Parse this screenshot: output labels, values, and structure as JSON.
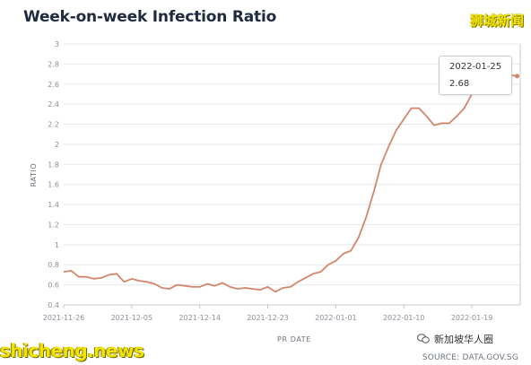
{
  "title": "Week-on-week Infection Ratio",
  "watermark_top": "狮城新闻",
  "watermark_bottom_left": "shicheng.news",
  "watermark_bottom_right": "新加坡华人圈",
  "source": "SOURCE: DATA.GOV.SG",
  "tooltip": {
    "date": "2022-01-25",
    "value": "2.68"
  },
  "colors": {
    "line": "#d4866b",
    "grid": "#e6e8eb",
    "title": "#1f2a3f"
  },
  "chart_data": {
    "type": "line",
    "title": "Week-on-week Infection Ratio",
    "xlabel": "PR DATE",
    "ylabel": "RATIO",
    "ylim": [
      0.4,
      3
    ],
    "yticks": [
      "0.4",
      "0.6",
      "0.8",
      "1",
      "1.2",
      "1.4",
      "1.6",
      "1.8",
      "2",
      "2.2",
      "2.4",
      "2.6",
      "2.8",
      "3"
    ],
    "xticks": [
      "2021-11-26",
      "2021-12-05",
      "2021-12-14",
      "2021-12-23",
      "2022-01-01",
      "2022-01-10",
      "2022-01-19"
    ],
    "grid": true,
    "series": [
      {
        "x": [
          "2021-11-26",
          "2021-11-27",
          "2021-11-28",
          "2021-11-29",
          "2021-11-30",
          "2021-12-01",
          "2021-12-02",
          "2021-12-03",
          "2021-12-04",
          "2021-12-05",
          "2021-12-06",
          "2021-12-07",
          "2021-12-08",
          "2021-12-09",
          "2021-12-10",
          "2021-12-11",
          "2021-12-12",
          "2021-12-13",
          "2021-12-14",
          "2021-12-15",
          "2021-12-16",
          "2021-12-17",
          "2021-12-18",
          "2021-12-19",
          "2021-12-20",
          "2021-12-21",
          "2021-12-22",
          "2021-12-23",
          "2021-12-24",
          "2021-12-25",
          "2021-12-26",
          "2021-12-27",
          "2021-12-28",
          "2021-12-29",
          "2021-12-30",
          "2021-12-31",
          "2022-01-01",
          "2022-01-02",
          "2022-01-03",
          "2022-01-04",
          "2022-01-05",
          "2022-01-06",
          "2022-01-07",
          "2022-01-08",
          "2022-01-09",
          "2022-01-10",
          "2022-01-11",
          "2022-01-12",
          "2022-01-13",
          "2022-01-14",
          "2022-01-15",
          "2022-01-16",
          "2022-01-17",
          "2022-01-18",
          "2022-01-19",
          "2022-01-20",
          "2022-01-21",
          "2022-01-22",
          "2022-01-23",
          "2022-01-24",
          "2022-01-25"
        ],
        "values": [
          0.73,
          0.74,
          0.68,
          0.68,
          0.66,
          0.67,
          0.7,
          0.71,
          0.63,
          0.66,
          0.64,
          0.63,
          0.61,
          0.57,
          0.56,
          0.6,
          0.59,
          0.58,
          0.58,
          0.61,
          0.59,
          0.62,
          0.58,
          0.56,
          0.57,
          0.56,
          0.55,
          0.58,
          0.53,
          0.57,
          0.58,
          0.63,
          0.67,
          0.71,
          0.73,
          0.8,
          0.84,
          0.91,
          0.94,
          1.07,
          1.27,
          1.52,
          1.8,
          1.98,
          2.14,
          2.25,
          2.36,
          2.36,
          2.28,
          2.19,
          2.21,
          2.21,
          2.28,
          2.36,
          2.5,
          2.63,
          2.73,
          2.76,
          2.78,
          2.69,
          2.68
        ]
      }
    ]
  }
}
